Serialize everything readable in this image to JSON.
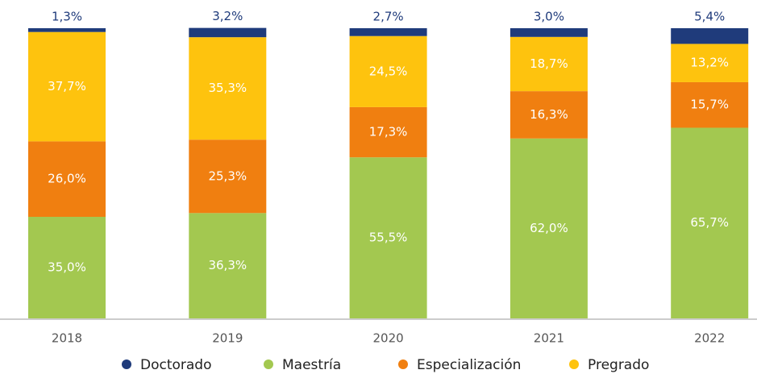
{
  "chart_data": {
    "type": "stacked_bar",
    "categories": [
      "2018",
      "2019",
      "2020",
      "2021",
      "2022"
    ],
    "ylim": [
      0,
      100
    ],
    "series": [
      {
        "name": "Doctorado",
        "color": "#1f3b7b",
        "values": [
          1.3,
          3.2,
          2.7,
          3.0,
          5.4
        ],
        "value_labels": [
          "1,3%",
          "3,2%",
          "2,7%",
          "3,0%",
          "5,4%"
        ]
      },
      {
        "name": "Maestría",
        "color": "#a3c850",
        "values": [
          35.0,
          36.3,
          55.5,
          62.0,
          65.7
        ],
        "value_labels": [
          "35,0%",
          "36,3%",
          "55,5%",
          "62,0%",
          "65,7%"
        ]
      },
      {
        "name": "Especialización",
        "color": "#f07f10",
        "values": [
          26.0,
          25.3,
          17.3,
          16.3,
          15.7
        ],
        "value_labels": [
          "26,0%",
          "25,3%",
          "17,3%",
          "16,3%",
          "15,7%"
        ]
      },
      {
        "name": "Pregrado",
        "color": "#fec30e",
        "values": [
          37.7,
          35.3,
          24.5,
          18.7,
          13.2
        ],
        "value_labels": [
          "37,7%",
          "35,3%",
          "24,5%",
          "18,7%",
          "13,2%"
        ]
      }
    ],
    "legend": "bottom"
  }
}
